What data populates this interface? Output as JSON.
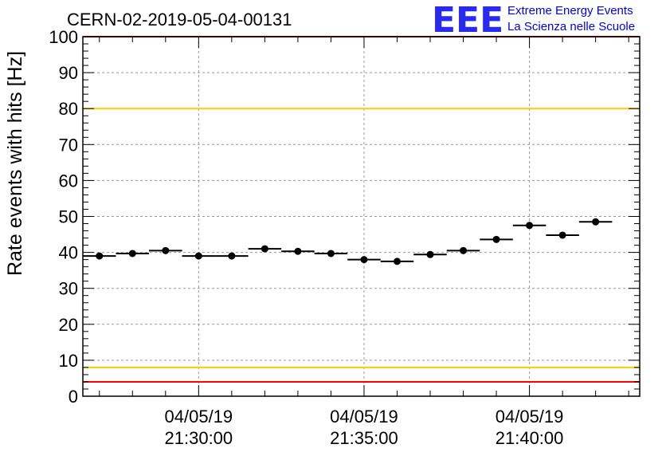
{
  "header": {
    "run_id": "CERN-02-2019-05-04-00131"
  },
  "logo": {
    "mark": "EEE",
    "line1": "Extreme Energy Events",
    "line2": "La Scienza nelle Scuole",
    "color": "#0000ee"
  },
  "chart_data": {
    "type": "scatter",
    "title": "",
    "ylabel": "Rate events with hits [Hz]",
    "xlabel": "",
    "ylim": [
      0,
      100
    ],
    "yticks": [
      0,
      10,
      20,
      30,
      40,
      50,
      60,
      70,
      80,
      90,
      100
    ],
    "xlim": [
      "2019-05-04 21:26:30",
      "2019-05-04 21:43:20"
    ],
    "xticks": [
      {
        "time": "2019-05-04 21:30:00",
        "date_label": "04/05/19",
        "time_label": "21:30:00"
      },
      {
        "time": "2019-05-04 21:35:00",
        "date_label": "04/05/19",
        "time_label": "21:35:00"
      },
      {
        "time": "2019-05-04 21:40:00",
        "date_label": "04/05/19",
        "time_label": "21:40:00"
      }
    ],
    "grid": true,
    "bin_width_seconds": 60,
    "points": [
      {
        "x": "2019-05-04 21:27:00",
        "y": 39.0
      },
      {
        "x": "2019-05-04 21:28:00",
        "y": 39.7
      },
      {
        "x": "2019-05-04 21:29:00",
        "y": 40.5
      },
      {
        "x": "2019-05-04 21:30:00",
        "y": 39.0
      },
      {
        "x": "2019-05-04 21:31:00",
        "y": 39.0
      },
      {
        "x": "2019-05-04 21:32:00",
        "y": 41.0
      },
      {
        "x": "2019-05-04 21:33:00",
        "y": 40.3
      },
      {
        "x": "2019-05-04 21:34:00",
        "y": 39.7
      },
      {
        "x": "2019-05-04 21:35:00",
        "y": 38.0
      },
      {
        "x": "2019-05-04 21:36:00",
        "y": 37.5
      },
      {
        "x": "2019-05-04 21:37:00",
        "y": 39.4
      },
      {
        "x": "2019-05-04 21:38:00",
        "y": 40.5
      },
      {
        "x": "2019-05-04 21:39:00",
        "y": 43.6
      },
      {
        "x": "2019-05-04 21:40:00",
        "y": 47.5
      },
      {
        "x": "2019-05-04 21:41:00",
        "y": 44.8
      },
      {
        "x": "2019-05-04 21:42:00",
        "y": 48.5
      }
    ],
    "reference_lines": [
      {
        "y": 100,
        "color": "#ff0000"
      },
      {
        "y": 80,
        "color": "#ffcc00"
      },
      {
        "y": 8,
        "color": "#ffcc00"
      },
      {
        "y": 4,
        "color": "#ff0000"
      }
    ],
    "marker_color": "#000000"
  }
}
